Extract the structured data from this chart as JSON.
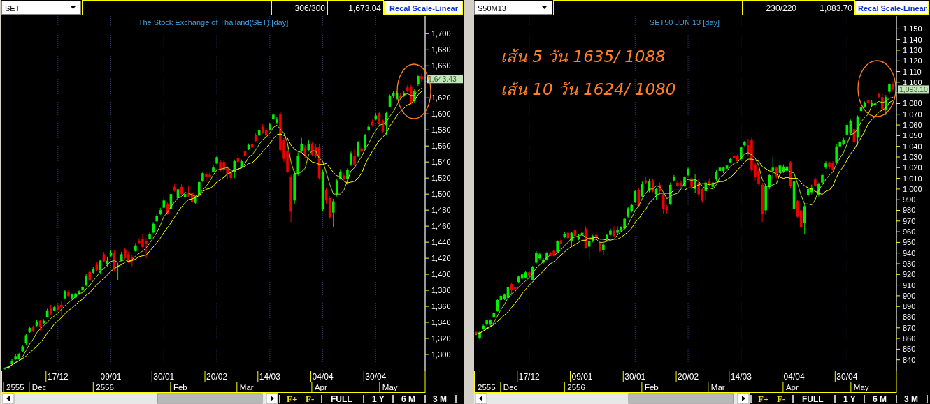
{
  "chart_data": [
    {
      "type": "candlestick",
      "title": "The Stock Exchange of Thailand(SET) [day]",
      "grid": "x",
      "categories": [
        null,
        null,
        null,
        null,
        null,
        null,
        null,
        null,
        null,
        null,
        null,
        null,
        null,
        null,
        null,
        "17/12",
        null,
        null,
        null,
        null,
        null,
        null,
        null,
        null,
        null,
        null,
        null,
        null,
        null,
        null,
        "09/01",
        null,
        null,
        null,
        null,
        null,
        null,
        null,
        null,
        null,
        null,
        null,
        null,
        null,
        null,
        "30/01",
        null,
        null,
        null,
        null,
        null,
        null,
        null,
        null,
        null,
        null,
        null,
        null,
        null,
        null,
        "20/02",
        null,
        null,
        null,
        null,
        null,
        null,
        null,
        null,
        null,
        null,
        null,
        null,
        null,
        null,
        "14/03",
        null,
        null,
        null,
        null,
        null,
        null,
        null,
        null,
        null,
        null,
        null,
        null,
        null,
        null,
        "04/04",
        null,
        null,
        null,
        null,
        null,
        null,
        null,
        null,
        null,
        null,
        null,
        null,
        null,
        null,
        "30/04",
        null,
        null,
        null,
        null,
        null,
        null,
        null,
        null,
        null,
        null,
        null,
        null,
        null
      ],
      "ohlc": [
        [
          1282,
          1284,
          1281,
          1283
        ],
        [
          1283,
          1286,
          1282,
          1285
        ],
        [
          1288,
          1294,
          1287,
          1292
        ],
        [
          1294,
          1300,
          1293,
          1298
        ],
        [
          1294,
          1302,
          1292,
          1300
        ],
        [
          1304,
          1312,
          1303,
          1310
        ],
        [
          1314,
          1326,
          1312,
          1324
        ],
        [
          1328,
          1335,
          1327,
          1333
        ],
        [
          1334,
          1336,
          1328,
          1329
        ],
        [
          1336,
          1343,
          1335,
          1341
        ],
        [
          1342,
          1343,
          1330,
          1335
        ],
        [
          1339,
          1344,
          1338,
          1342
        ],
        [
          1347,
          1357,
          1346,
          1355
        ],
        [
          1357,
          1362,
          1349,
          1350
        ],
        [
          1355,
          1361,
          1354,
          1359
        ],
        [
          1361,
          1364,
          1355,
          1356
        ],
        [
          1362,
          1366,
          1349,
          1359
        ],
        [
          1370,
          1380,
          1369,
          1379
        ],
        [
          1378,
          1381,
          1372,
          1373
        ],
        [
          1370,
          1376,
          1369,
          1375
        ],
        [
          1371,
          1377,
          1370,
          1376
        ],
        [
          1375,
          1380,
          1374,
          1379
        ],
        [
          1380,
          1385,
          1379,
          1384
        ],
        [
          1386,
          1400,
          1385,
          1398
        ],
        [
          1403,
          1406,
          1391,
          1392
        ],
        [
          1402,
          1409,
          1401,
          1407
        ],
        [
          1412,
          1415,
          1404,
          1405
        ],
        [
          1405,
          1418,
          1400,
          1417
        ],
        [
          1425,
          1428,
          1415,
          1416
        ],
        [
          1412,
          1422,
          1409,
          1417
        ],
        [
          1423,
          1430,
          1422,
          1427
        ],
        [
          1427,
          1430,
          1404,
          1406
        ],
        [
          1409,
          1414,
          1393,
          1411
        ],
        [
          1417,
          1428,
          1416,
          1425
        ],
        [
          1431,
          1433,
          1419,
          1420
        ],
        [
          1425,
          1428,
          1414,
          1417
        ],
        [
          1421,
          1424,
          1410,
          1418
        ],
        [
          1429,
          1439,
          1428,
          1436
        ],
        [
          1442,
          1445,
          1438,
          1439
        ],
        [
          1444,
          1450,
          1432,
          1434
        ],
        [
          1441,
          1445,
          1420,
          1438
        ],
        [
          1444,
          1452,
          1443,
          1450
        ],
        [
          1452,
          1465,
          1451,
          1463
        ],
        [
          1466,
          1475,
          1465,
          1473
        ],
        [
          1475,
          1483,
          1474,
          1480
        ],
        [
          1483,
          1495,
          1482,
          1492
        ],
        [
          1488,
          1490,
          1474,
          1475
        ],
        [
          1481,
          1502,
          1480,
          1500
        ],
        [
          1509,
          1512,
          1503,
          1504
        ],
        [
          1495,
          1510,
          1494,
          1506
        ],
        [
          1509,
          1512,
          1499,
          1500
        ],
        [
          1496,
          1505,
          1486,
          1500
        ],
        [
          1500,
          1510,
          1496,
          1497
        ],
        [
          1501,
          1503,
          1489,
          1490
        ],
        [
          1489,
          1498,
          1487,
          1496
        ],
        [
          1498,
          1517,
          1497,
          1515
        ],
        [
          1516,
          1527,
          1515,
          1526
        ],
        [
          1525,
          1528,
          1515,
          1522
        ],
        [
          1524,
          1527,
          1521,
          1522
        ],
        [
          1528,
          1536,
          1527,
          1533
        ],
        [
          1538,
          1548,
          1537,
          1546
        ],
        [
          1540,
          1542,
          1528,
          1530
        ],
        [
          1540,
          1542,
          1525,
          1530
        ],
        [
          1532,
          1535,
          1518,
          1525
        ],
        [
          1528,
          1530,
          1517,
          1520
        ],
        [
          1528,
          1543,
          1520,
          1541
        ],
        [
          1545,
          1550,
          1539,
          1540
        ],
        [
          1533,
          1543,
          1532,
          1541
        ],
        [
          1554,
          1557,
          1546,
          1547
        ],
        [
          1556,
          1563,
          1555,
          1561
        ],
        [
          1562,
          1565,
          1557,
          1558
        ],
        [
          1574,
          1576,
          1565,
          1566
        ],
        [
          1573,
          1582,
          1572,
          1580
        ],
        [
          1584,
          1587,
          1575,
          1576
        ],
        [
          1580,
          1582,
          1570,
          1573
        ],
        [
          1580,
          1589,
          1579,
          1587
        ],
        [
          1594,
          1601,
          1593,
          1599
        ],
        [
          1589,
          1596,
          1587,
          1593
        ],
        [
          1600,
          1603,
          1553,
          1555
        ],
        [
          1568,
          1570,
          1540,
          1544
        ],
        [
          1554,
          1559,
          1526,
          1528
        ],
        [
          1521,
          1524,
          1465,
          1478
        ],
        [
          1492,
          1529,
          1488,
          1525
        ],
        [
          1525,
          1552,
          1523,
          1548
        ],
        [
          1554,
          1570,
          1552,
          1562
        ],
        [
          1558,
          1561,
          1545,
          1547
        ],
        [
          1555,
          1567,
          1553,
          1562
        ],
        [
          1563,
          1565,
          1547,
          1549
        ],
        [
          1559,
          1562,
          1545,
          1548
        ],
        [
          1558,
          1562,
          1518,
          1520
        ],
        [
          1481,
          1530,
          1478,
          1528
        ],
        [
          1505,
          1508,
          1488,
          1492
        ],
        [
          1495,
          1497,
          1469,
          1471
        ],
        [
          1477,
          1494,
          1459,
          1491
        ],
        [
          1500,
          1519,
          1497,
          1517
        ],
        [
          1519,
          1531,
          1518,
          1528
        ],
        [
          1523,
          1526,
          1517,
          1519
        ],
        [
          1519,
          1532,
          1512,
          1530
        ],
        [
          1537,
          1553,
          1535,
          1551
        ],
        [
          1548,
          1556,
          1535,
          1537
        ],
        [
          1547,
          1566,
          1546,
          1565
        ],
        [
          1557,
          1559,
          1552,
          1553
        ],
        [
          1557,
          1575,
          1555,
          1574
        ],
        [
          1580,
          1587,
          1579,
          1584
        ],
        [
          1590,
          1593,
          1584,
          1586
        ],
        [
          1593,
          1601,
          1592,
          1598
        ],
        [
          1601,
          1603,
          1586,
          1588
        ],
        [
          1591,
          1593,
          1577,
          1578
        ],
        [
          1586,
          1603,
          1574,
          1601
        ],
        [
          1609,
          1624,
          1608,
          1622
        ],
        [
          1622,
          1628,
          1620,
          1626
        ],
        [
          1619,
          1628,
          1618,
          1626
        ],
        [
          1622,
          1626,
          1617,
          1619
        ],
        [
          1622,
          1628,
          1621,
          1626
        ],
        [
          1633,
          1636,
          1627,
          1629
        ],
        [
          1634,
          1636,
          1611,
          1613
        ],
        [
          1616,
          1631,
          1614,
          1629
        ],
        [
          1637,
          1648,
          1635,
          1647
        ],
        [
          1647,
          1650,
          1640,
          1643.43
        ]
      ],
      "series": [
        {
          "type": "line",
          "color": "#a8e030",
          "values": [
            1283,
            1284,
            1287,
            1290,
            1292,
            1297,
            1305,
            1313,
            1319,
            1327,
            1332,
            1336,
            1340,
            1345,
            1348,
            1352,
            1356,
            1361,
            1365,
            1368,
            1372,
            1376,
            1377,
            1382,
            1386,
            1392,
            1397,
            1404,
            1407,
            1412,
            1416,
            1417,
            1415,
            1417,
            1418,
            1416,
            1418,
            1423,
            1426,
            1429,
            1433,
            1439,
            1445,
            1452,
            1461,
            1472,
            1477,
            1484,
            1490,
            1495,
            1497,
            1502,
            1501,
            1499,
            1497,
            1500,
            1505,
            1510,
            1516,
            1524,
            1530,
            1531,
            1532,
            1533,
            1530,
            1529,
            1531,
            1533,
            1538,
            1546,
            1549,
            1555,
            1562,
            1568,
            1571,
            1576,
            1583,
            1586,
            1581,
            1576,
            1564,
            1540,
            1526,
            1525,
            1528,
            1532,
            1549,
            1554,
            1554,
            1545,
            1541,
            1527,
            1512,
            1500,
            1500,
            1500,
            1505,
            1517,
            1529,
            1533,
            1540,
            1547,
            1556,
            1563,
            1572,
            1579,
            1586,
            1587,
            1590,
            1597,
            1603,
            1611,
            1619,
            1624,
            1625,
            1623,
            1623,
            1629,
            1632
          ]
        },
        {
          "type": "line",
          "color": "#ffff00",
          "values": [
            1283,
            1284,
            1287,
            1290,
            1292,
            1295,
            1298,
            1302,
            1306,
            1310,
            1315,
            1320,
            1327,
            1332,
            1338,
            1342,
            1346,
            1351,
            1355,
            1358,
            1362,
            1366,
            1369,
            1374,
            1377,
            1382,
            1387,
            1391,
            1395,
            1399,
            1404,
            1407,
            1410,
            1412,
            1415,
            1416,
            1417,
            1419,
            1422,
            1423,
            1424,
            1429,
            1434,
            1439,
            1445,
            1452,
            1458,
            1464,
            1471,
            1478,
            1484,
            1489,
            1493,
            1494,
            1496,
            1498,
            1503,
            1506,
            1507,
            1510,
            1515,
            1518,
            1521,
            1525,
            1527,
            1530,
            1531,
            1533,
            1535,
            1538,
            1539,
            1543,
            1548,
            1553,
            1558,
            1563,
            1569,
            1574,
            1575,
            1573,
            1570,
            1561,
            1556,
            1553,
            1552,
            1548,
            1544,
            1540,
            1539,
            1537,
            1537,
            1538,
            1533,
            1527,
            1523,
            1521,
            1516,
            1514,
            1515,
            1516,
            1520,
            1526,
            1537,
            1546,
            1553,
            1560,
            1567,
            1571,
            1576,
            1585,
            1591,
            1598,
            1603,
            1607,
            1611,
            1613,
            1617,
            1624,
            1628
          ]
        }
      ],
      "ylim": [
        1280,
        1722
      ],
      "yticks": [
        {
          "value": 1300,
          "label": "1,300"
        },
        {
          "value": 1320,
          "label": "1,320"
        },
        {
          "value": 1340,
          "label": "1,340"
        },
        {
          "value": 1360,
          "label": "1,360"
        },
        {
          "value": 1380,
          "label": "1,380"
        },
        {
          "value": 1400,
          "label": "1,400"
        },
        {
          "value": 1420,
          "label": "1,420"
        },
        {
          "value": 1440,
          "label": "1,440"
        },
        {
          "value": 1460,
          "label": "1,460"
        },
        {
          "value": 1480,
          "label": "1,480"
        },
        {
          "value": 1500,
          "label": "1,500"
        },
        {
          "value": 1520,
          "label": "1,520"
        },
        {
          "value": 1540,
          "label": "1,540"
        },
        {
          "value": 1560,
          "label": "1,560"
        },
        {
          "value": 1580,
          "label": "1,580"
        },
        {
          "value": 1600,
          "label": "1,600"
        },
        {
          "value": 1620,
          "label": "1,620"
        },
        {
          "value": 1640,
          "label": null
        },
        {
          "value": 1660,
          "label": "1,660"
        },
        {
          "value": 1680,
          "label": "1,680"
        },
        {
          "value": 1700,
          "label": "1,700"
        }
      ],
      "annotations": [
        "SET",
        "306/300",
        "1,673.04",
        "Recal Scale-Linear",
        "1,643.43",
        "2555",
        "Dec",
        "2556",
        "Feb",
        "Mar",
        "Apr",
        "May",
        "F+",
        "F-",
        "FULL",
        "1 Y",
        "6 M",
        "3 M"
      ]
    },
    {
      "type": "candlestick",
      "title": "SET50 JUN 13  [day]",
      "grid": "x",
      "categories": [
        null,
        null,
        null,
        null,
        null,
        null,
        null,
        null,
        null,
        null,
        null,
        null,
        null,
        null,
        null,
        "17/12",
        null,
        null,
        null,
        null,
        null,
        null,
        null,
        null,
        null,
        null,
        null,
        null,
        null,
        null,
        "09/01",
        null,
        null,
        null,
        null,
        null,
        null,
        null,
        null,
        null,
        null,
        null,
        null,
        null,
        null,
        "30/01",
        null,
        null,
        null,
        null,
        null,
        null,
        null,
        null,
        null,
        null,
        null,
        null,
        null,
        null,
        "20/02",
        null,
        null,
        null,
        null,
        null,
        null,
        null,
        null,
        null,
        null,
        null,
        null,
        null,
        null,
        "14/03",
        null,
        null,
        null,
        null,
        null,
        null,
        null,
        null,
        null,
        null,
        null,
        null,
        null,
        null,
        "04/04",
        null,
        null,
        null,
        null,
        null,
        null,
        null,
        null,
        null,
        null,
        null,
        null,
        null,
        null,
        "30/04",
        null,
        null,
        null,
        null,
        null,
        null,
        null,
        null,
        null,
        null,
        null,
        null,
        null
      ],
      "ohlc": [
        [
          866,
          867,
          863,
          864
        ],
        [
          860,
          867,
          859,
          866
        ],
        [
          869,
          873,
          868,
          872
        ],
        [
          873,
          878,
          872,
          877
        ],
        [
          873,
          878,
          871,
          877
        ],
        [
          880,
          885,
          879,
          884
        ],
        [
          886,
          897,
          885,
          896
        ],
        [
          896,
          902,
          894,
          900
        ],
        [
          897,
          902,
          896,
          901
        ],
        [
          898,
          909,
          897,
          908
        ],
        [
          911,
          912,
          900,
          905
        ],
        [
          908,
          909,
          905,
          906
        ],
        [
          913,
          919,
          912,
          918
        ],
        [
          916,
          921,
          915,
          920
        ],
        [
          917,
          923,
          916,
          922
        ],
        [
          922,
          923,
          918,
          919
        ],
        [
          915,
          928,
          915,
          927
        ],
        [
          931,
          942,
          930,
          940
        ],
        [
          935,
          940,
          934,
          939
        ],
        [
          931,
          935,
          930,
          934
        ],
        [
          934,
          941,
          933,
          940
        ],
        [
          940,
          941,
          937,
          938
        ],
        [
          942,
          943,
          937,
          938
        ],
        [
          941,
          952,
          940,
          951
        ],
        [
          952,
          954,
          948,
          949
        ],
        [
          955,
          960,
          954,
          958
        ],
        [
          959,
          960,
          953,
          954
        ],
        [
          951,
          960,
          947,
          959
        ],
        [
          962,
          963,
          954,
          956
        ],
        [
          953,
          958,
          952,
          955
        ],
        [
          957,
          961,
          956,
          959
        ],
        [
          963,
          965,
          944,
          945
        ],
        [
          946,
          952,
          934,
          951
        ],
        [
          951,
          957,
          950,
          956
        ],
        [
          957,
          960,
          952,
          954
        ],
        [
          950,
          951,
          941,
          942
        ],
        [
          943,
          950,
          938,
          948
        ],
        [
          953,
          958,
          952,
          957
        ],
        [
          957,
          963,
          956,
          961
        ],
        [
          961,
          965,
          955,
          956
        ],
        [
          959,
          965,
          957,
          962
        ],
        [
          961,
          965,
          960,
          964
        ],
        [
          963,
          973,
          962,
          972
        ],
        [
          974,
          983,
          973,
          982
        ],
        [
          979,
          986,
          978,
          985
        ],
        [
          988,
          999,
          987,
          998
        ],
        [
          999,
          1001,
          983,
          984
        ],
        [
          993,
          1007,
          992,
          1005
        ],
        [
          1008,
          1011,
          1005,
          1006
        ],
        [
          998,
          1009,
          997,
          1007
        ],
        [
          1007,
          1009,
          997,
          998
        ],
        [
          995,
          1001,
          990,
          1000
        ],
        [
          1004,
          1006,
          994,
          998
        ],
        [
          995,
          997,
          977,
          981
        ],
        [
          983,
          985,
          977,
          980
        ],
        [
          986,
          1006,
          985,
          1004
        ],
        [
          1008,
          1013,
          1007,
          1011
        ],
        [
          1006,
          1008,
          1002,
          1003
        ],
        [
          1006,
          1008,
          1001,
          1003
        ],
        [
          1003,
          1012,
          1002,
          1011
        ],
        [
          1013,
          1020,
          1012,
          1019
        ],
        [
          1010,
          1011,
          1000,
          1002
        ],
        [
          1000,
          1014,
          996,
          1009
        ],
        [
          1006,
          1009,
          992,
          995
        ],
        [
          1000,
          1001,
          987,
          989
        ],
        [
          998,
          1007,
          990,
          1006
        ],
        [
          1007,
          1010,
          1003,
          1005
        ],
        [
          1002,
          1008,
          1001,
          1006
        ],
        [
          1009,
          1018,
          1007,
          1016
        ],
        [
          1017,
          1021,
          1016,
          1020
        ],
        [
          1017,
          1021,
          1015,
          1020
        ],
        [
          1019,
          1023,
          1018,
          1022
        ],
        [
          1025,
          1029,
          1024,
          1028
        ],
        [
          1031,
          1033,
          1028,
          1029
        ],
        [
          1031,
          1033,
          1024,
          1026
        ],
        [
          1028,
          1040,
          1026,
          1039
        ],
        [
          1041,
          1045,
          1040,
          1044
        ],
        [
          1041,
          1047,
          1031,
          1033
        ],
        [
          1046,
          1048,
          1016,
          1018
        ],
        [
          1023,
          1025,
          1008,
          1011
        ],
        [
          1017,
          1019,
          1003,
          1005
        ],
        [
          1004,
          1006,
          969,
          977
        ],
        [
          980,
          1005,
          976,
          1003
        ],
        [
          1002,
          1014,
          1000,
          1013
        ],
        [
          1017,
          1030,
          1009,
          1020
        ],
        [
          1020,
          1021,
          1010,
          1012
        ],
        [
          1015,
          1026,
          1014,
          1022
        ],
        [
          1016,
          1023,
          1015,
          1021
        ],
        [
          1017,
          1022,
          1016,
          1021
        ],
        [
          1025,
          1026,
          1001,
          1003
        ],
        [
          981,
          1009,
          979,
          1007
        ],
        [
          989,
          990,
          973,
          974
        ],
        [
          980,
          981,
          963,
          964
        ],
        [
          968,
          986,
          958,
          984
        ],
        [
          994,
          1002,
          993,
          1000
        ],
        [
          997,
          1004,
          995,
          1001
        ],
        [
          1009,
          1011,
          1002,
          1003
        ],
        [
          994,
          1006,
          993,
          1005
        ],
        [
          1006,
          1014,
          1005,
          1013
        ],
        [
          1020,
          1026,
          1019,
          1024
        ],
        [
          1025,
          1026,
          1019,
          1020
        ],
        [
          1024,
          1026,
          1017,
          1018
        ],
        [
          1025,
          1042,
          1024,
          1040
        ],
        [
          1040,
          1045,
          1039,
          1044
        ],
        [
          1042,
          1048,
          1041,
          1046
        ],
        [
          1051,
          1061,
          1050,
          1060
        ],
        [
          1052,
          1065,
          1051,
          1064
        ],
        [
          1056,
          1057,
          1043,
          1044
        ],
        [
          1048,
          1069,
          1041,
          1068
        ],
        [
          1073,
          1078,
          1072,
          1077
        ],
        [
          1077,
          1082,
          1076,
          1081
        ],
        [
          1083,
          1084,
          1070,
          1081
        ],
        [
          1078,
          1083,
          1077,
          1081
        ],
        [
          1079,
          1082,
          1076,
          1080
        ],
        [
          1089,
          1090,
          1085,
          1086
        ],
        [
          1086,
          1089,
          1073,
          1075
        ],
        [
          1074,
          1088,
          1069,
          1086
        ],
        [
          1091,
          1099,
          1089,
          1098
        ],
        [
          1098,
          1101,
          1091,
          1093.1
        ]
      ],
      "series": [
        {
          "type": "line",
          "color": "#a8e030",
          "values": [
            864,
            865,
            867,
            870,
            871,
            875,
            881,
            887,
            892,
            898,
            902,
            904,
            908,
            911,
            914,
            917,
            921,
            926,
            929,
            932,
            936,
            938,
            938,
            940,
            943,
            947,
            950,
            954,
            955,
            956,
            957,
            955,
            953,
            953,
            953,
            950,
            950,
            951,
            952,
            953,
            957,
            960,
            963,
            967,
            973,
            980,
            984,
            991,
            996,
            1000,
            1000,
            1003,
            1002,
            997,
            991,
            993,
            995,
            996,
            1000,
            1006,
            1009,
            1008,
            1009,
            1007,
            1003,
            1000,
            1001,
            1000,
            1004,
            1011,
            1013,
            1017,
            1021,
            1024,
            1025,
            1029,
            1033,
            1034,
            1032,
            1029,
            1022,
            1009,
            1003,
            1002,
            1004,
            1005,
            1014,
            1018,
            1019,
            1016,
            1015,
            1005,
            994,
            986,
            986,
            985,
            990,
            999,
            1004,
            1009,
            1013,
            1016,
            1023,
            1029,
            1034,
            1042,
            1051,
            1052,
            1056,
            1063,
            1067,
            1070,
            1078,
            1080,
            1082,
            1081,
            1082,
            1085,
            1086
          ]
        },
        {
          "type": "line",
          "color": "#ffff00",
          "values": [
            864,
            865,
            867,
            869,
            871,
            873,
            876,
            879,
            882,
            885,
            889,
            893,
            897,
            902,
            906,
            910,
            913,
            917,
            920,
            923,
            927,
            930,
            932,
            935,
            938,
            941,
            944,
            946,
            948,
            950,
            952,
            952,
            954,
            954,
            955,
            953,
            953,
            952,
            953,
            953,
            953,
            955,
            957,
            960,
            963,
            969,
            972,
            977,
            981,
            987,
            990,
            994,
            996,
            996,
            996,
            996,
            999,
            999,
            999,
            999,
            1001,
            1001,
            1002,
            1004,
            1005,
            1005,
            1004,
            1005,
            1006,
            1007,
            1007,
            1009,
            1011,
            1014,
            1018,
            1021,
            1025,
            1028,
            1028,
            1027,
            1026,
            1021,
            1019,
            1017,
            1016,
            1014,
            1011,
            1010,
            1011,
            1010,
            1010,
            1010,
            1006,
            1003,
            1001,
            1000,
            998,
            996,
            995,
            998,
            999,
            1003,
            1011,
            1017,
            1021,
            1027,
            1033,
            1037,
            1043,
            1048,
            1054,
            1061,
            1065,
            1068,
            1072,
            1074,
            1076,
            1081,
            1083
          ]
        }
      ],
      "ylim": [
        830,
        1162
      ],
      "yticks": [
        840,
        850,
        860,
        870,
        880,
        890,
        900,
        910,
        920,
        930,
        940,
        950,
        960,
        970,
        980,
        990,
        {
          "value": 1000,
          "label": "1,000"
        },
        {
          "value": 1010,
          "label": "1,010"
        },
        {
          "value": 1020,
          "label": "1,020"
        },
        {
          "value": 1030,
          "label": "1,030"
        },
        {
          "value": 1040,
          "label": "1,040"
        },
        {
          "value": 1050,
          "label": "1,050"
        },
        {
          "value": 1060,
          "label": "1,060"
        },
        {
          "value": 1070,
          "label": "1,070"
        },
        {
          "value": 1080,
          "label": "1,080"
        },
        {
          "value": 1090,
          "label": null
        },
        {
          "value": 1100,
          "label": "1,100"
        },
        {
          "value": 1110,
          "label": "1,110"
        },
        {
          "value": 1120,
          "label": "1,120"
        },
        {
          "value": 1130,
          "label": "1,130"
        },
        {
          "value": 1140,
          "label": "1,140"
        },
        {
          "value": 1150,
          "label": "1,150"
        }
      ],
      "annotations": [
        "S50M13",
        "230/220",
        "1,083.70",
        "Recal Scale-Linear",
        "1,093.10",
        "2555",
        "Dec",
        "2556",
        "Feb",
        "Mar",
        "Apr",
        "May",
        "F+",
        "F-",
        "FULL",
        "1 Y",
        "6 M",
        "3 M",
        "เส้น 5 วัน 1635/ 1088",
        "เส้น 10 วัน 1624/ 1080"
      ]
    }
  ]
}
